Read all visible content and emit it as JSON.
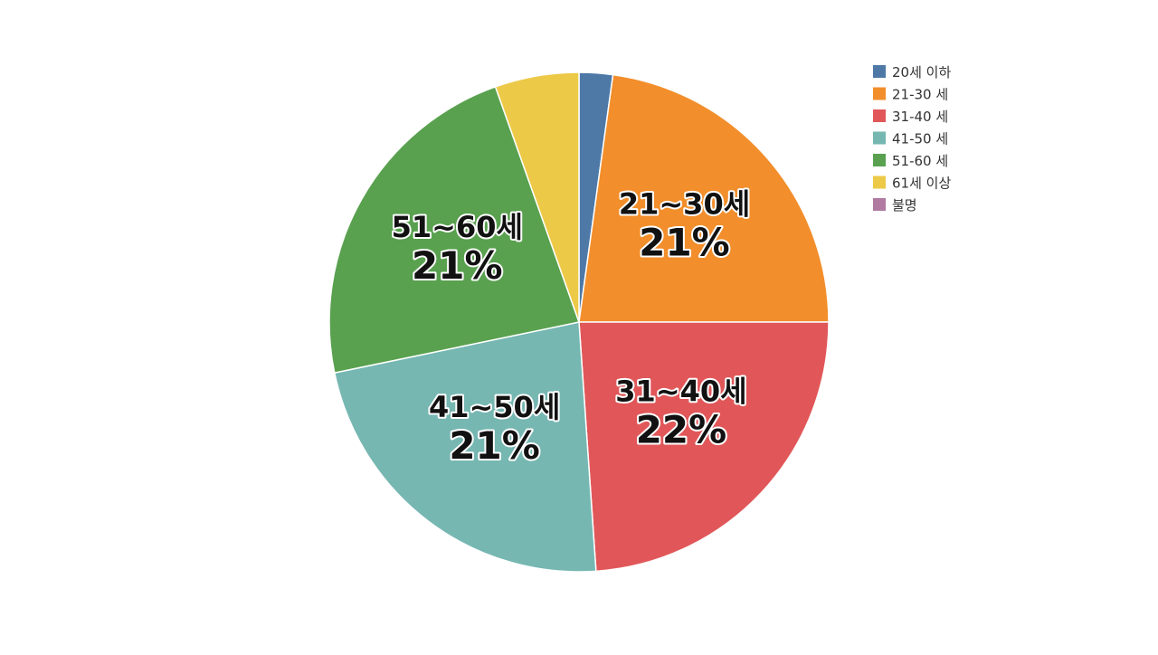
{
  "chart_data": {
    "type": "pie",
    "title": "",
    "legend_position": "top-right",
    "slices": [
      {
        "legend": "20세 이하",
        "value": 2,
        "color": "#4e79a7",
        "label_name": "",
        "label_pct": ""
      },
      {
        "legend": "21-30 세",
        "value": 21,
        "color": "#f28e2b",
        "label_name": "21~30세",
        "label_pct": "21%"
      },
      {
        "legend": "31-40 세",
        "value": 22,
        "color": "#e15759",
        "label_name": "31~40세",
        "label_pct": "22%"
      },
      {
        "legend": "41-50 세",
        "value": 21,
        "color": "#76b7b2",
        "label_name": "41~50세",
        "label_pct": "21%"
      },
      {
        "legend": "51-60 세",
        "value": 21,
        "color": "#59a14f",
        "label_name": "51~60세",
        "label_pct": "21%"
      },
      {
        "legend": "61세 이상",
        "value": 5,
        "color": "#edc948",
        "label_name": "",
        "label_pct": ""
      },
      {
        "legend": "불명",
        "value": 0,
        "color": "#b07aa1",
        "label_name": "",
        "label_pct": ""
      }
    ]
  }
}
